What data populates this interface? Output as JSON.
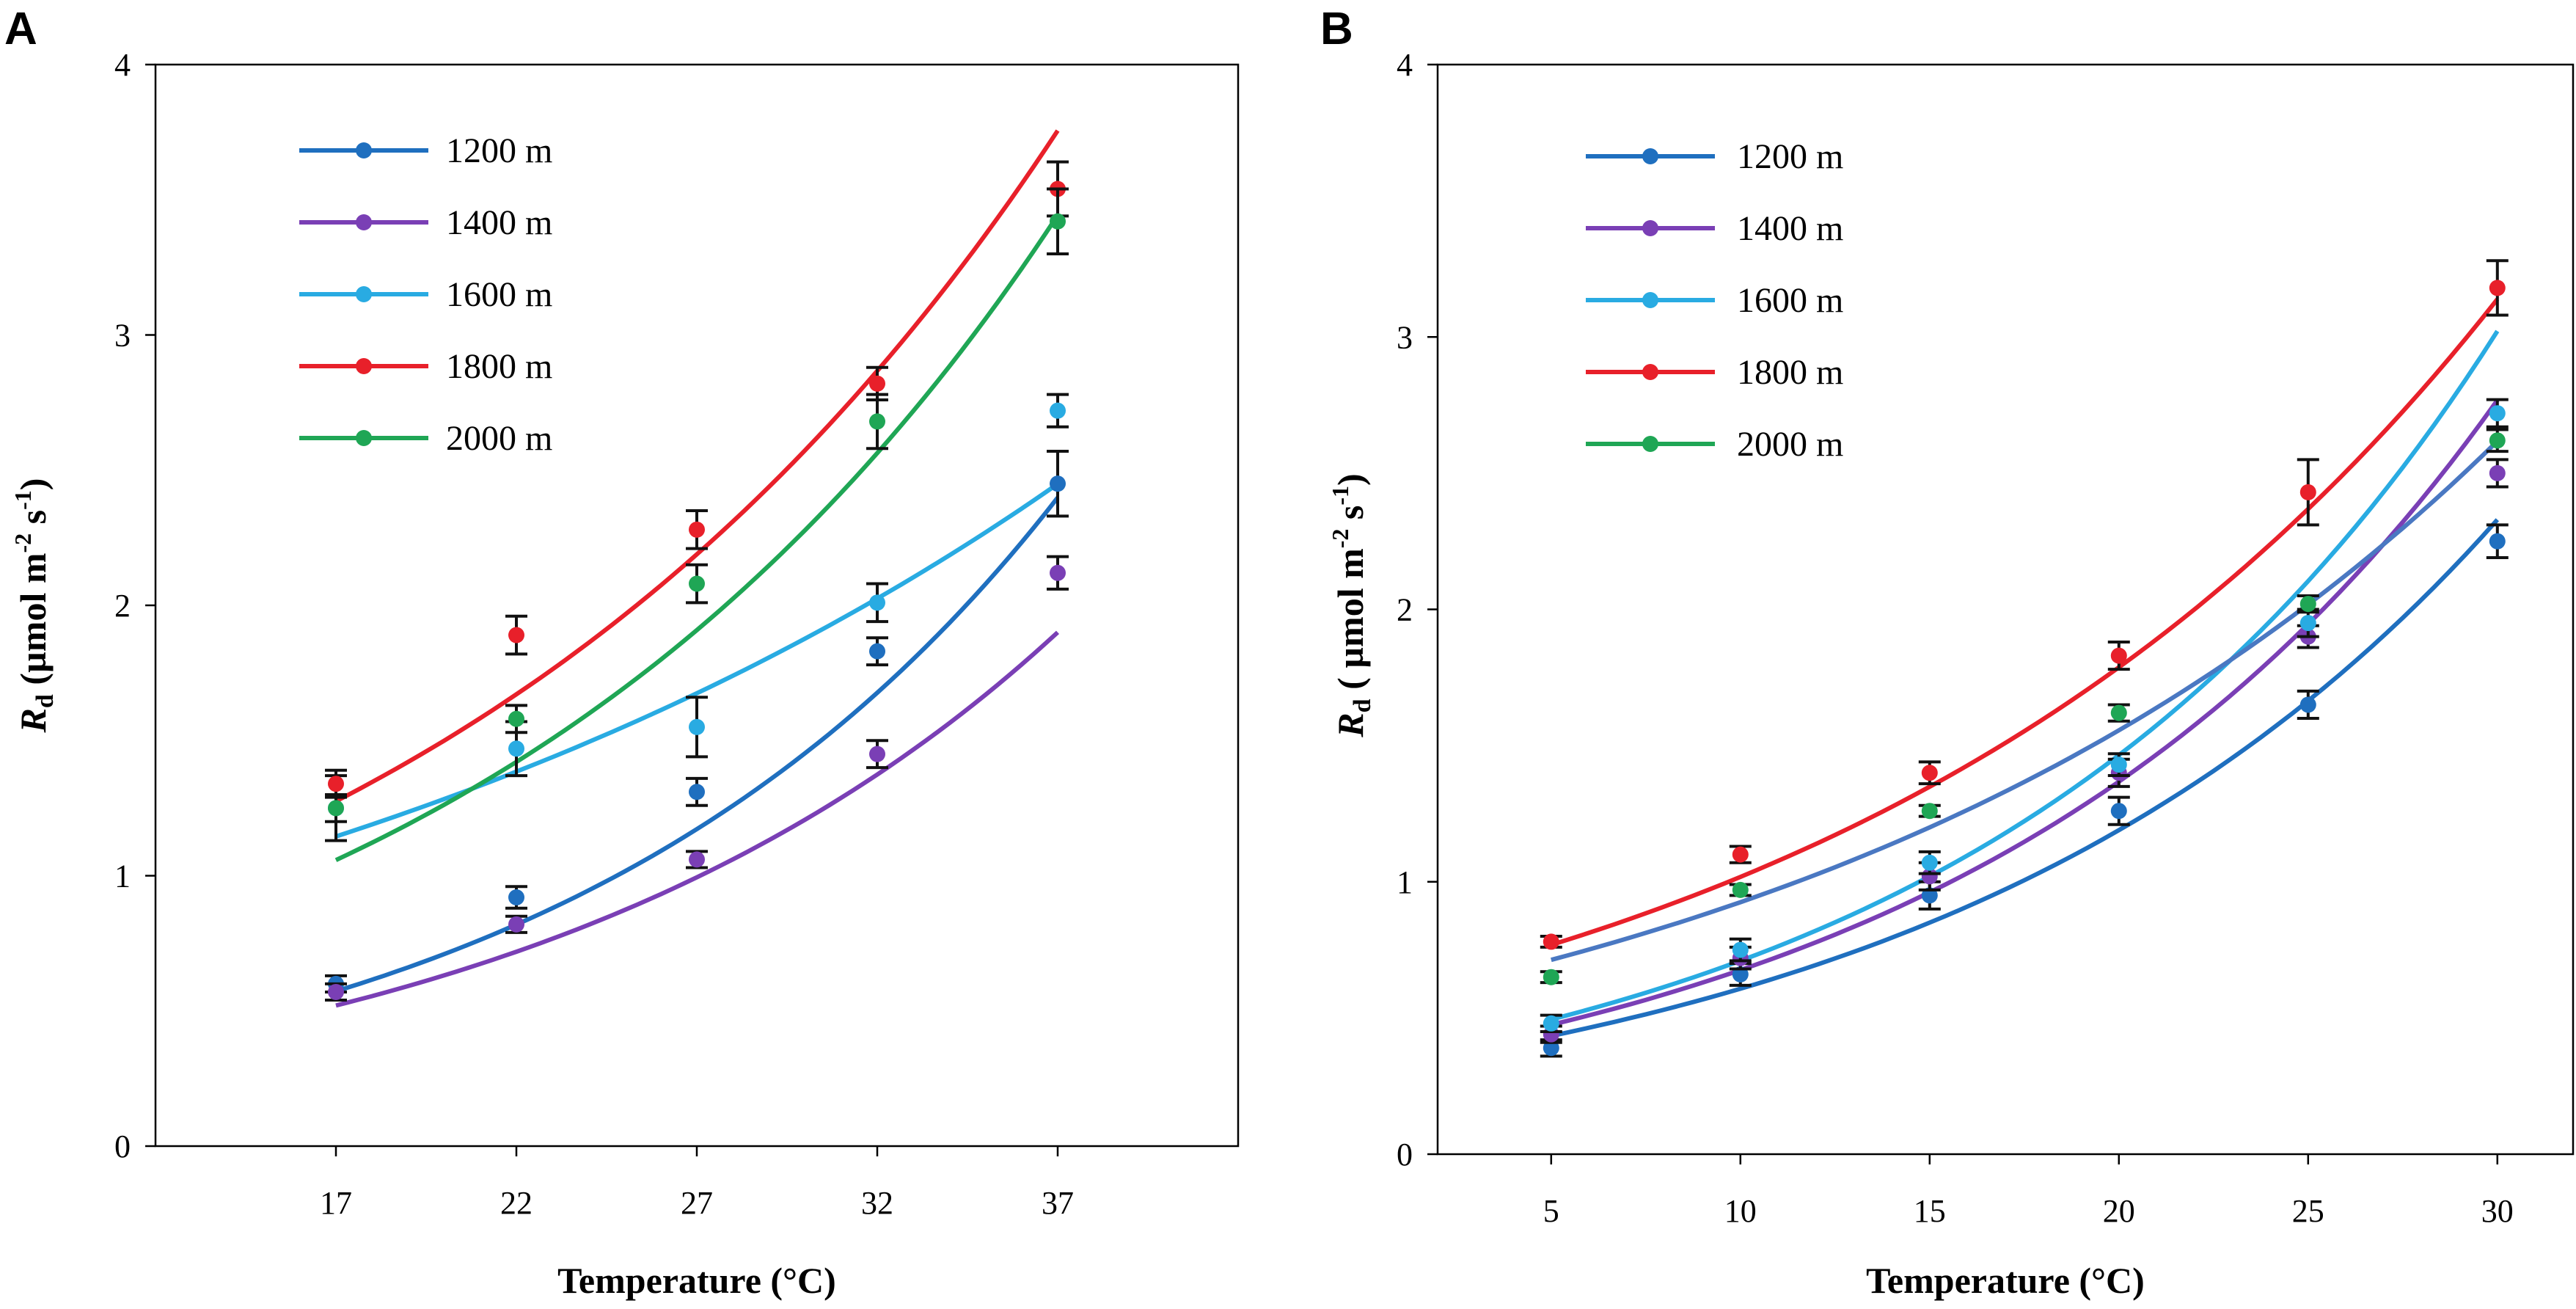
{
  "figure": {
    "panels": [
      "A",
      "B"
    ]
  },
  "chart_data": [
    {
      "panel": "A",
      "type": "line",
      "title": "",
      "xlabel": "Temperature (°C)",
      "ylabel_main": "R",
      "ylabel_sub": "d",
      "ylabel_units_pre": " (µmol m",
      "ylabel_sup1": "-2",
      "ylabel_units_mid": " s",
      "ylabel_sup2": "-1",
      "ylabel_units_post": ")",
      "xlim": [
        12,
        42
      ],
      "ylim": [
        0,
        4
      ],
      "x": [
        17,
        22,
        27,
        32,
        37
      ],
      "xticks": [
        17,
        22,
        27,
        32,
        37
      ],
      "yticks": [
        0,
        1,
        2,
        3,
        4
      ],
      "legend_position": "top-left",
      "series": [
        {
          "name": "1200 m",
          "color": "#1f6fbf",
          "values": [
            0.6,
            0.92,
            1.31,
            1.83,
            2.45
          ],
          "errors": [
            0.03,
            0.04,
            0.05,
            0.05,
            0.12
          ],
          "fit_a": 0.1696,
          "fit_b": 0.0716
        },
        {
          "name": "1400 m",
          "color": "#7a3fb5",
          "values": [
            0.57,
            0.82,
            1.06,
            1.45,
            2.12
          ],
          "errors": [
            0.03,
            0.03,
            0.03,
            0.05,
            0.06
          ],
          "fit_a": 0.1728,
          "fit_b": 0.0648
        },
        {
          "name": "1600 m",
          "color": "#29abe2",
          "values": [
            1.25,
            1.47,
            1.55,
            2.01,
            2.72
          ],
          "errors": [
            0.12,
            0.1,
            0.11,
            0.07,
            0.06
          ],
          "fit_a": 0.6003,
          "fit_b": 0.038
        },
        {
          "name": "1800 m",
          "color": "#e8202a",
          "values": [
            1.34,
            1.89,
            2.28,
            2.82,
            3.54
          ],
          "errors": [
            0.05,
            0.07,
            0.07,
            0.06,
            0.1
          ],
          "fit_a": 0.5093,
          "fit_b": 0.054
        },
        {
          "name": "2000 m",
          "color": "#1fa655",
          "values": [
            1.25,
            1.58,
            2.08,
            2.68,
            3.42
          ],
          "errors": [
            0.05,
            0.05,
            0.07,
            0.1,
            0.12
          ],
          "fit_a": 0.388,
          "fit_b": 0.059
        }
      ]
    },
    {
      "panel": "B",
      "type": "line",
      "title": "",
      "xlabel": "Temperature (°C)",
      "ylabel_main": "R",
      "ylabel_sub": "d",
      "ylabel_units_pre": " ( µmol m",
      "ylabel_sup1": "-2",
      "ylabel_units_mid": " s",
      "ylabel_sup2": "-1",
      "ylabel_units_post": ")",
      "xlim": [
        2,
        32
      ],
      "ylim": [
        0,
        4
      ],
      "x": [
        5,
        10,
        15,
        20,
        25,
        30
      ],
      "xticks": [
        5,
        10,
        15,
        20,
        25,
        30
      ],
      "yticks": [
        0,
        1,
        2,
        3,
        4
      ],
      "legend_position": "top-left",
      "series": [
        {
          "name": "1200 m",
          "color": "#1f6fbf",
          "values": [
            0.39,
            0.66,
            0.95,
            1.26,
            1.65,
            2.25
          ],
          "errors": [
            0.03,
            0.04,
            0.05,
            0.05,
            0.05,
            0.06
          ],
          "fit_a": 0.3102,
          "fit_b": 0.0672
        },
        {
          "name": "1400 m",
          "color": "#7a3fb5",
          "values": [
            0.44,
            0.72,
            1.02,
            1.4,
            1.9,
            2.5
          ],
          "errors": [
            0.03,
            0.04,
            0.05,
            0.05,
            0.04,
            0.05
          ],
          "fit_a": 0.3339,
          "fit_b": 0.0705
        },
        {
          "name": "1600 m",
          "color": "#29abe2",
          "values": [
            0.48,
            0.75,
            1.07,
            1.43,
            1.95,
            2.72
          ],
          "errors": [
            0.03,
            0.04,
            0.04,
            0.04,
            0.05,
            0.05
          ],
          "fit_a": 0.3443,
          "fit_b": 0.0724
        },
        {
          "name": "1800 m",
          "color": "#e8202a",
          "values": [
            0.78,
            1.1,
            1.4,
            1.83,
            2.43,
            3.18
          ],
          "errors": [
            0.02,
            0.03,
            0.04,
            0.05,
            0.12,
            0.1
          ],
          "fit_a": 0.5797,
          "fit_b": 0.0563
        },
        {
          "name": "2000 m",
          "color": "#1fa655",
          "values": [
            0.65,
            0.97,
            1.26,
            1.62,
            2.02,
            2.62
          ],
          "errors": [
            0.02,
            0.02,
            0.02,
            0.03,
            0.03,
            0.04
          ],
          "fit_a": 0.55,
          "fit_b": 0.052,
          "fit_color": "#4a78c2"
        }
      ]
    }
  ]
}
